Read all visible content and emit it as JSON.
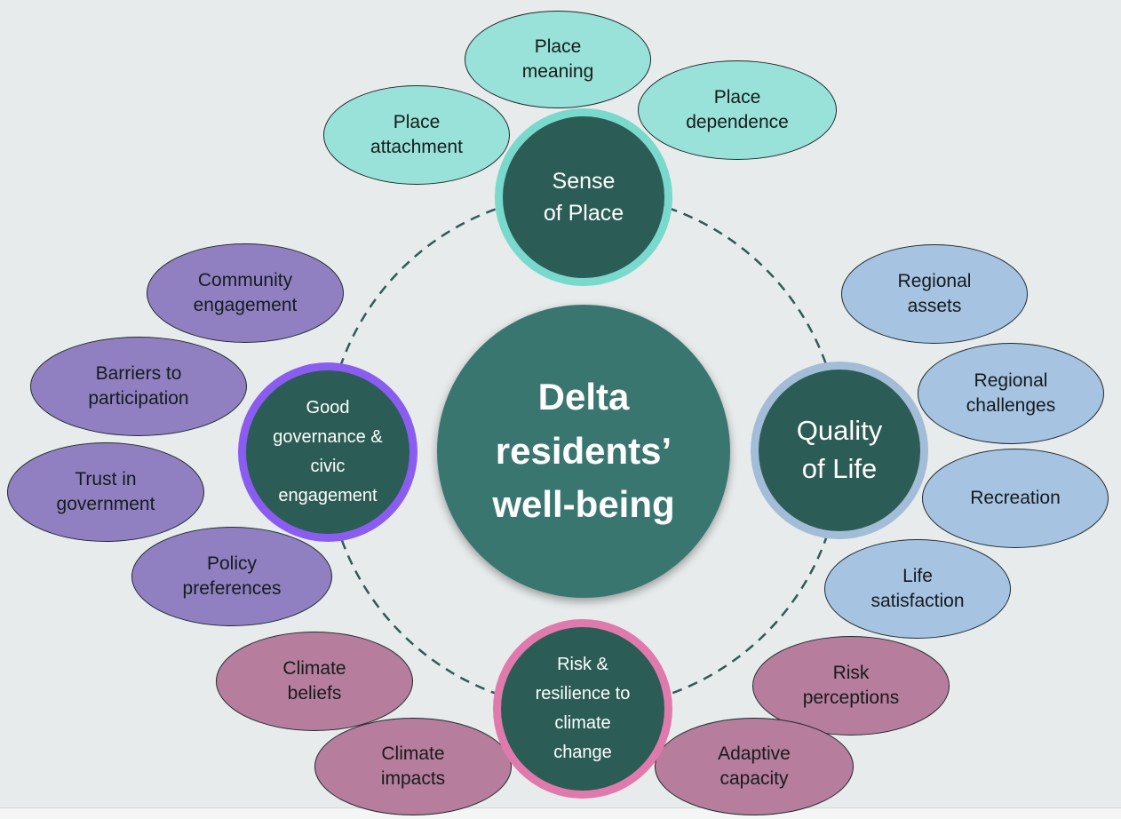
{
  "diagram": {
    "center": {
      "label": "Delta\nresidents’\nwell-being"
    },
    "colors": {
      "background": "#e8ebec",
      "center_fill": "#3a7670",
      "hub_fill": "#2b5c56",
      "connector": "#2b5c56",
      "sense_of_place": "#98e2d9",
      "quality_of_life": "#a6c3e2",
      "governance": "#9180c1",
      "risk": "#b67d9c",
      "sense_ring": "#79d9cc",
      "quality_ring": "#a3bcd8",
      "governance_ring": "#8a5df0",
      "risk_ring": "#e07aac"
    },
    "hubs": {
      "sense_of_place": {
        "label": "Sense\nof Place",
        "items": [
          "Place\nmeaning",
          "Place\nattachment",
          "Place\ndependence"
        ]
      },
      "quality_of_life": {
        "label": "Quality\nof Life",
        "items": [
          "Regional\nassets",
          "Regional\nchallenges",
          "Recreation",
          "Life\nsatisfaction"
        ]
      },
      "governance": {
        "label": "Good\ngovernance &\ncivic\nengagement",
        "items": [
          "Community\nengagement",
          "Barriers to\nparticipation",
          "Trust in\ngovernment",
          "Policy\npreferences"
        ]
      },
      "risk": {
        "label": "Risk &\nresilience to\nclimate\nchange",
        "items": [
          "Climate\nbeliefs",
          "Climate\nimpacts",
          "Risk\nperceptions",
          "Adaptive\ncapacity"
        ]
      }
    }
  }
}
